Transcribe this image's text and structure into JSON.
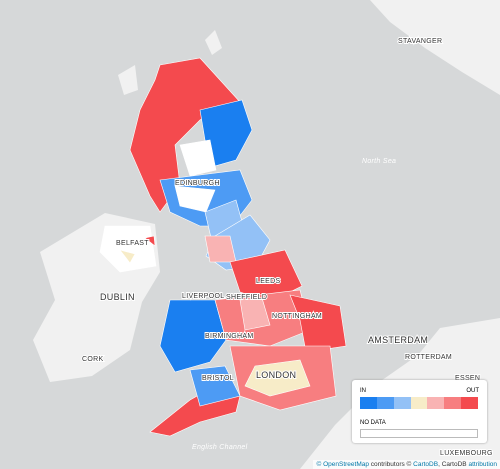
{
  "map": {
    "places": [
      "STAVANGER",
      "EDINBURGH",
      "BELFAST",
      "DUBLIN",
      "LEEDS",
      "LIVERPOOL",
      "SHEFFIELD",
      "NOTTINGHAM",
      "BIRMINGHAM",
      "CORK",
      "BRISTOL",
      "LONDON",
      "AMSTERDAM",
      "ROTTERDAM",
      "ESSEN",
      "LUXEMBOURG"
    ],
    "seas": [
      "North Sea",
      "English Channel"
    ]
  },
  "legend": {
    "in_label": "IN",
    "out_label": "OUT",
    "no_data_label": "NO DATA",
    "colors": [
      "#1a7ff0",
      "#4d9bf4",
      "#93c1f6",
      "#f7ecc8",
      "#f9b3b3",
      "#f77e80",
      "#f44a4e"
    ]
  },
  "attribution": {
    "osm": "© OpenStreetMap",
    "contributors": "contributors ©",
    "cartodb": "CartoDB",
    "rest": ", CartoDB",
    "link": "attribution"
  }
}
